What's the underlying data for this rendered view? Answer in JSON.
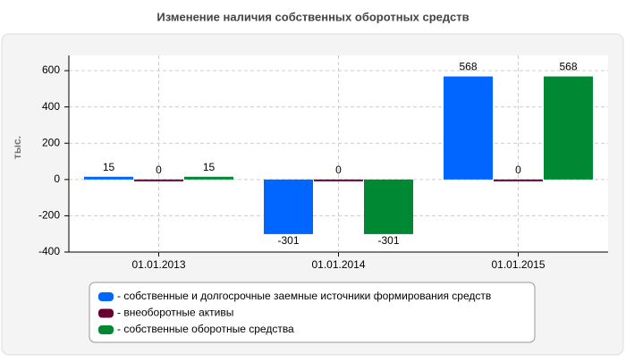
{
  "chart_data": {
    "type": "bar",
    "title": "Изменение наличия собственных оборотных средств",
    "y_label": "тыс.",
    "categories": [
      "01.01.2013",
      "01.01.2014",
      "01.01.2015"
    ],
    "series": [
      {
        "name": "- собственные и долгосрочные заемные источники формирования средств",
        "color": "#0066ff",
        "values": [
          15,
          -301,
          568
        ]
      },
      {
        "name": "- внеоборотные активы",
        "color": "#660033",
        "values": [
          0,
          0,
          0
        ]
      },
      {
        "name": "- собственные оборотные средства",
        "color": "#008833",
        "values": [
          15,
          -301,
          568
        ]
      }
    ],
    "ylim": [
      -400,
      684
    ],
    "yticks": [
      -400,
      -200,
      0,
      200,
      400,
      600
    ],
    "grid": true
  }
}
